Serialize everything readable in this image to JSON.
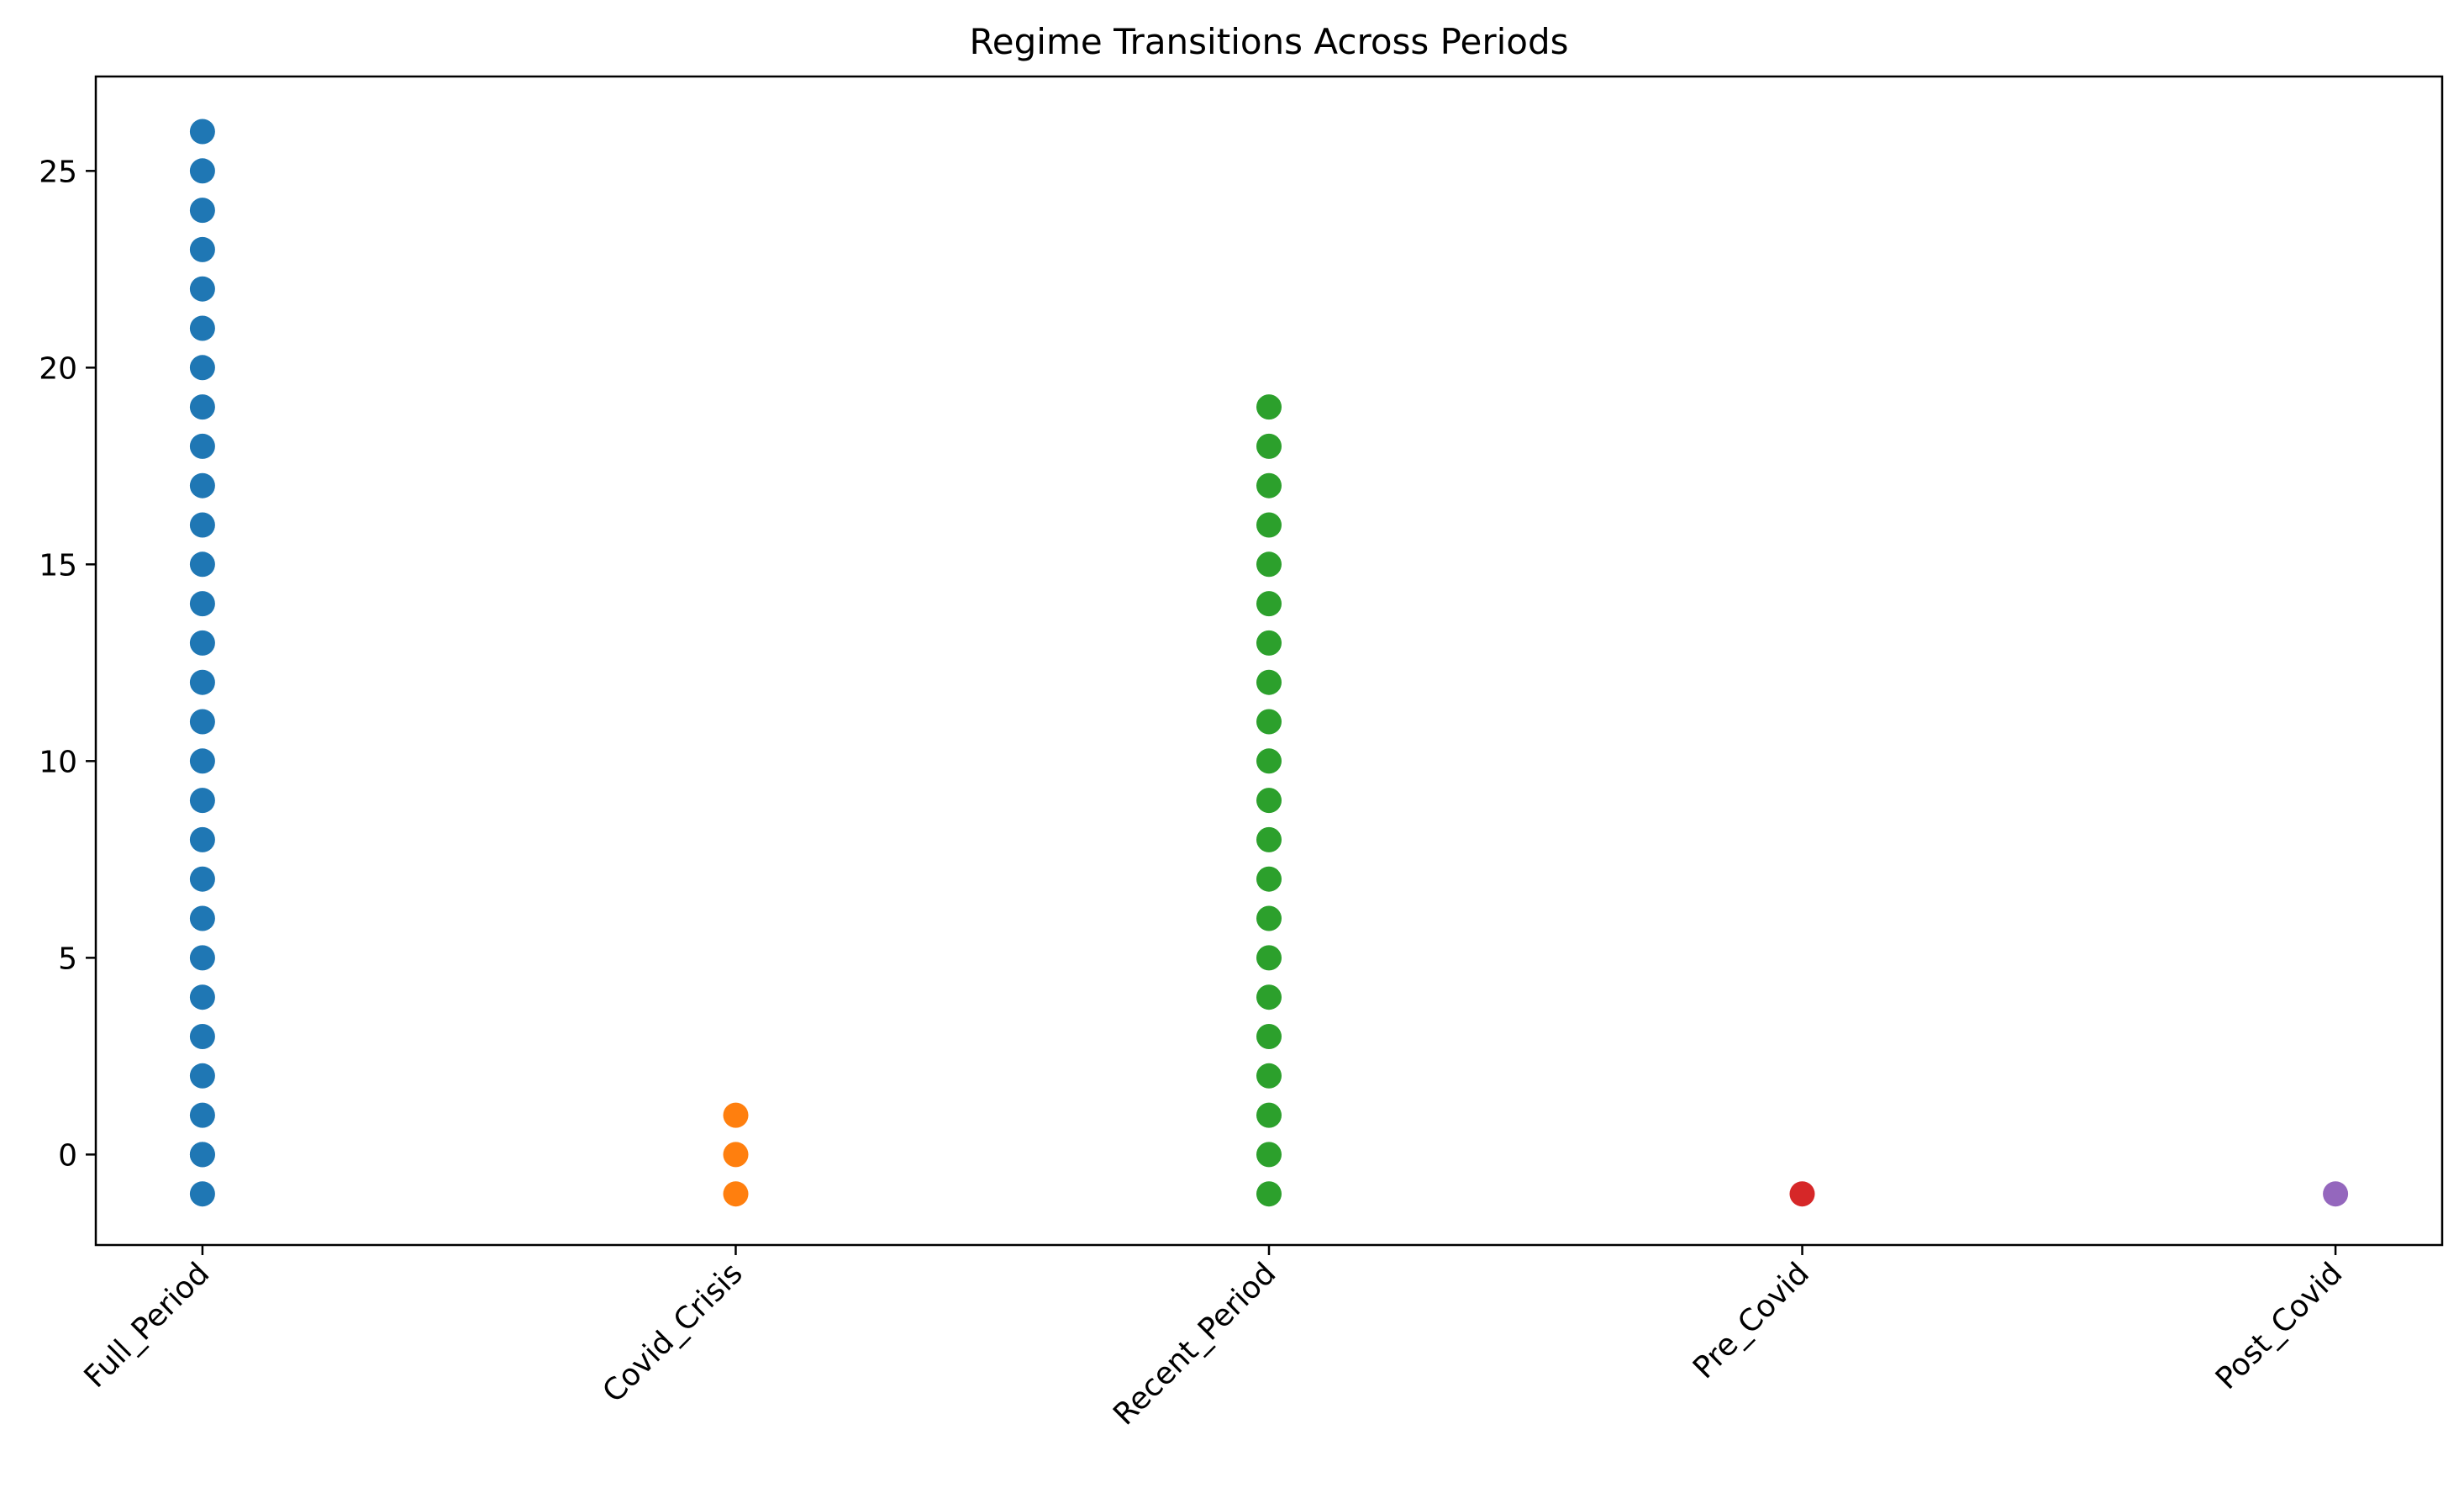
{
  "chart_data": {
    "type": "scatter",
    "title": "Regime Transitions Across Periods",
    "xlabel": "",
    "ylabel": "",
    "categories": [
      "Full_Period",
      "Covid_Crisis",
      "Recent_Period",
      "Pre_Covid",
      "Post_Covid"
    ],
    "yticks": [
      0,
      5,
      10,
      15,
      20,
      25
    ],
    "ylim": [
      -2.3,
      27.4
    ],
    "grid": false,
    "legend": "none",
    "series": [
      {
        "category": "Full_Period",
        "color": "#1f77b4",
        "values": [
          -1,
          0,
          0,
          1,
          2,
          3,
          4,
          5,
          6,
          7,
          8,
          9,
          10,
          11,
          12,
          13,
          14,
          15,
          16,
          17,
          18,
          19,
          20,
          21,
          22,
          23,
          24,
          25,
          26
        ]
      },
      {
        "category": "Covid_Crisis",
        "color": "#ff7f0e",
        "values": [
          -1,
          0,
          1
        ]
      },
      {
        "category": "Recent_Period",
        "color": "#2ca02c",
        "values": [
          -1,
          0,
          1,
          2,
          3,
          4,
          5,
          6,
          7,
          8,
          9,
          10,
          11,
          12,
          13,
          14,
          15,
          16,
          17,
          18,
          19
        ]
      },
      {
        "category": "Pre_Covid",
        "color": "#d62728",
        "values": [
          -1
        ]
      },
      {
        "category": "Post_Covid",
        "color": "#9467bd",
        "values": [
          -1
        ]
      }
    ]
  }
}
